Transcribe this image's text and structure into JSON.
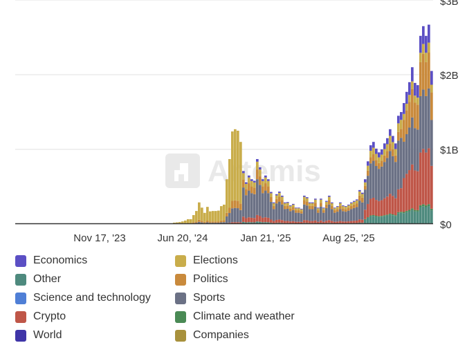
{
  "chart_data": {
    "type": "bar",
    "stacked": true,
    "title": "",
    "xlabel": "",
    "ylabel": "",
    "unit": "USD millions per week",
    "ylim": [
      0,
      3000
    ],
    "grid": true,
    "legend_placement": "bottom",
    "watermark": "Artemis",
    "y_ticks": [
      {
        "value": 0,
        "label": "$0"
      },
      {
        "value": 1000,
        "label": "$1B"
      },
      {
        "value": 2000,
        "label": "$2B"
      },
      {
        "value": 3000,
        "label": "$3B"
      }
    ],
    "x_ticks": [
      {
        "week_index": 30,
        "label": "Nov 17, '23"
      },
      {
        "week_index": 60,
        "label": "Jun 20, '24"
      },
      {
        "week_index": 90,
        "label": "Jan 21, '25"
      },
      {
        "week_index": 120,
        "label": "Aug 25, '25"
      }
    ],
    "series": [
      {
        "name": "Other",
        "color": "#4e8a7e"
      },
      {
        "name": "Climate and weather",
        "color": "#4a8a55"
      },
      {
        "name": "Crypto",
        "color": "#bf5648"
      },
      {
        "name": "Science and technology",
        "color": "#4f7fd6"
      },
      {
        "name": "Sports",
        "color": "#6b7185"
      },
      {
        "name": "Companies",
        "color": "#a8913c"
      },
      {
        "name": "Politics",
        "color": "#c98a3c"
      },
      {
        "name": "Elections",
        "color": "#c9ad4b"
      },
      {
        "name": "World",
        "color": "#3f35a8"
      },
      {
        "name": "Economics",
        "color": "#5b4fc4"
      }
    ],
    "weekly_totals": [
      0,
      0,
      0,
      0,
      0,
      0,
      0,
      0,
      0,
      0,
      0,
      0,
      0,
      0,
      0,
      0,
      0,
      0,
      0,
      0,
      0,
      0,
      0,
      0,
      0,
      0,
      0,
      0,
      0,
      0,
      0,
      0,
      0,
      0,
      0,
      0,
      0,
      5,
      5,
      5,
      5,
      5,
      5,
      5,
      5,
      5,
      5,
      5,
      5,
      5,
      5,
      5,
      5,
      5,
      5,
      5,
      5,
      10,
      15,
      20,
      30,
      45,
      65,
      65,
      120,
      175,
      290,
      220,
      150,
      230,
      170,
      175,
      175,
      180,
      240,
      260,
      600,
      870,
      1240,
      1270,
      1250,
      1100,
      710,
      560,
      650,
      600,
      580,
      870,
      760,
      600,
      650,
      600,
      430,
      290,
      400,
      435,
      380,
      290,
      295,
      250,
      270,
      220,
      220,
      205,
      380,
      360,
      290,
      290,
      340,
      220,
      340,
      220,
      310,
      380,
      290,
      220,
      240,
      290,
      250,
      240,
      260,
      290,
      310,
      330,
      455,
      420,
      600,
      840,
      1055,
      1100,
      1010,
      960,
      1000,
      1080,
      1150,
      1270,
      1180,
      1080,
      1450,
      1500,
      1620,
      1770,
      1900,
      2100,
      1890,
      1860,
      2520,
      2650,
      2520,
      2670,
      2050
    ],
    "category_shares_by_period": [
      {
        "from_week": 0,
        "shares": {
          "Elections": 1.0
        }
      },
      {
        "from_week": 57,
        "shares": {
          "Sports": 0.1,
          "Politics": 0.1,
          "Elections": 0.8
        }
      },
      {
        "from_week": 76,
        "shares": {
          "Crypto": 0.02,
          "Sports": 0.15,
          "Politics": 0.08,
          "Elections": 0.75
        }
      },
      {
        "from_week": 82,
        "shares": {
          "Other": 0.04,
          "Crypto": 0.1,
          "Sports": 0.55,
          "Politics": 0.15,
          "Elections": 0.12,
          "Economics": 0.04
        }
      },
      {
        "from_week": 126,
        "shares": {
          "Other": 0.1,
          "Climate and weather": 0.01,
          "Crypto": 0.21,
          "Sports": 0.45,
          "Politics": 0.08,
          "Elections": 0.08,
          "Economics": 0.07
        }
      },
      {
        "from_week": 140,
        "shares": {
          "Other": 0.09,
          "Climate and weather": 0.01,
          "Crypto": 0.28,
          "Sports": 0.3,
          "Politics": 0.18,
          "Elections": 0.05,
          "Economics": 0.09
        }
      }
    ]
  },
  "legend": [
    {
      "label": "Economics",
      "color": "#5b4fc4"
    },
    {
      "label": "Other",
      "color": "#4e8a7e"
    },
    {
      "label": "Science and technology",
      "color": "#4f7fd6"
    },
    {
      "label": "Crypto",
      "color": "#bf5648"
    },
    {
      "label": "World",
      "color": "#3f35a8"
    },
    {
      "label": "Elections",
      "color": "#c9ad4b"
    },
    {
      "label": "Politics",
      "color": "#c98a3c"
    },
    {
      "label": "Sports",
      "color": "#6b7185"
    },
    {
      "label": "Climate and weather",
      "color": "#4a8a55"
    },
    {
      "label": "Companies",
      "color": "#a8913c"
    }
  ]
}
